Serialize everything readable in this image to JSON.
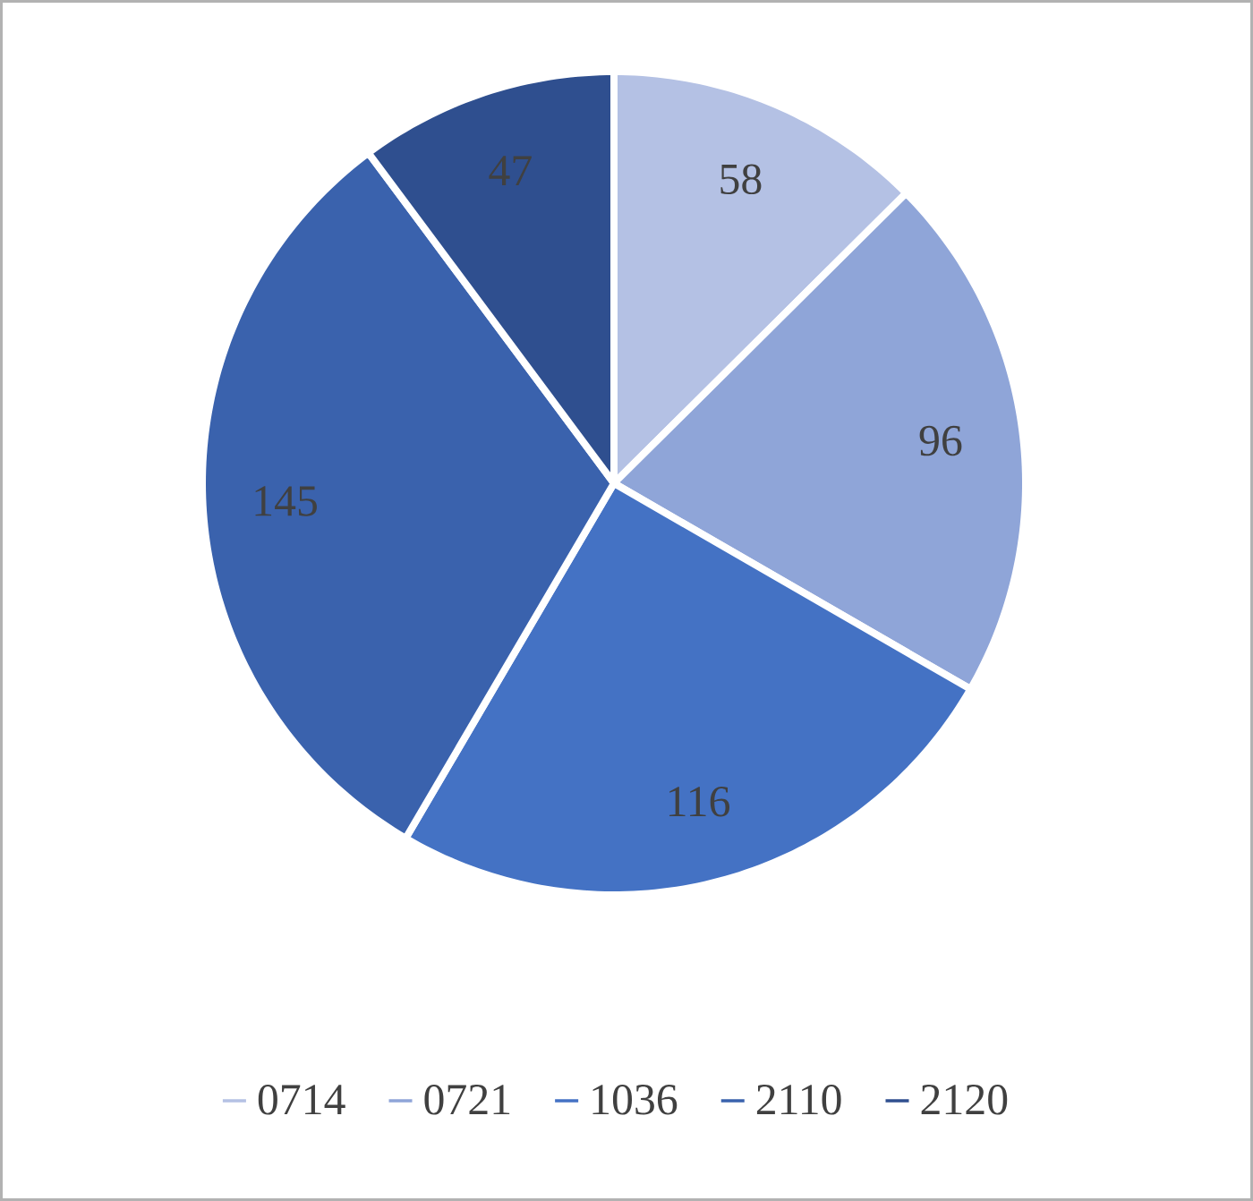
{
  "chart_data": {
    "type": "pie",
    "categories": [
      "0714",
      "0721",
      "1036",
      "2110",
      "2120"
    ],
    "values": [
      58,
      96,
      116,
      145,
      47
    ],
    "colors": [
      "#b4c1e4",
      "#8fa5d8",
      "#4472c4",
      "#3a62ad",
      "#2f4f8f"
    ],
    "data_labels": true,
    "legend": "bottom"
  }
}
